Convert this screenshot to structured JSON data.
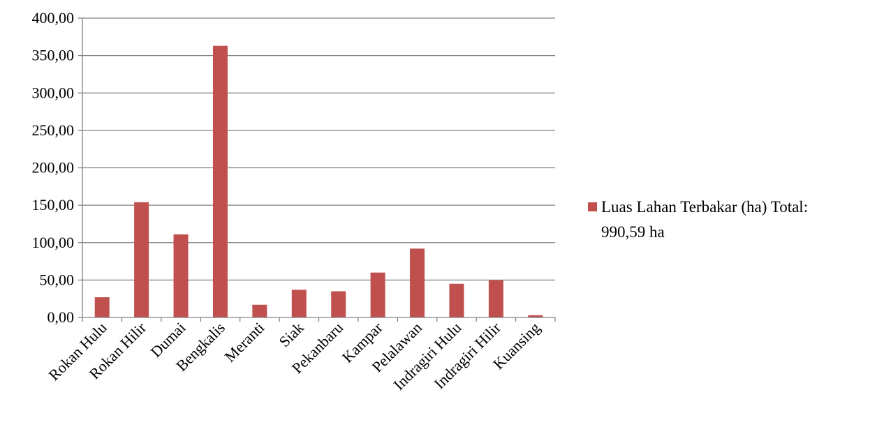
{
  "chart_data": {
    "type": "bar",
    "categories": [
      "Rokan Hulu",
      "Rokan Hilir",
      "Dumai",
      "Bengkalis",
      "Meranti",
      "Siak",
      "Pekanbaru",
      "Kampar",
      "Pelalawan",
      "Indragiri Hulu",
      "Indragiri Hilir",
      "Kuansing"
    ],
    "series": [
      {
        "name": "Luas Lahan Terbakar (ha) Total: 990,59 ha",
        "values": [
          27,
          154,
          111,
          363,
          17,
          37,
          35,
          60,
          92,
          45,
          50,
          3
        ],
        "color": "#C0504D"
      }
    ],
    "ylim": [
      0,
      400
    ],
    "yticks": [
      0,
      50,
      100,
      150,
      200,
      250,
      300,
      350,
      400
    ],
    "ytick_labels": [
      "0,00",
      "50,00",
      "100,00",
      "150,00",
      "200,00",
      "250,00",
      "300,00",
      "350,00",
      "400,00"
    ],
    "grid": true,
    "legend_position": "right",
    "legend_lines": [
      "Luas Lahan Terbakar (ha) Total:",
      "990,59 ha"
    ]
  }
}
